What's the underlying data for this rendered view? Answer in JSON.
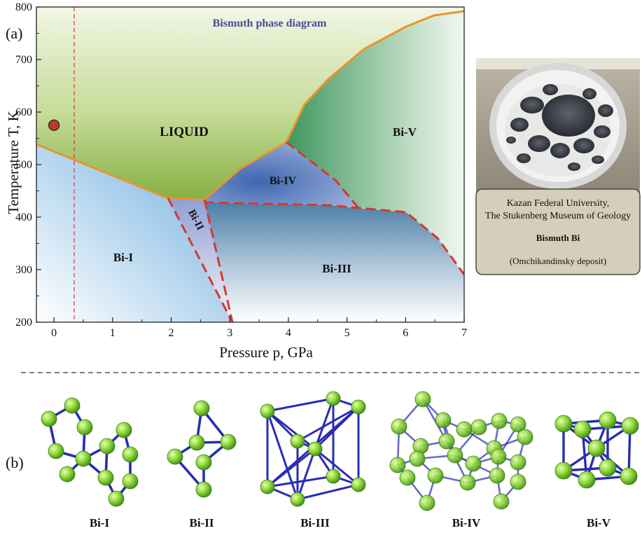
{
  "panel_a": {
    "label": "(a)",
    "title": "Bismuth phase diagram",
    "xlabel": "Pressure p, GPa",
    "ylabel": "Temperature T, K",
    "x_ticks": [
      "0",
      "1",
      "2",
      "3",
      "4",
      "5",
      "6",
      "7"
    ],
    "y_ticks": [
      "200",
      "300",
      "400",
      "500",
      "600",
      "700",
      "800"
    ],
    "x_range": [
      -0.3,
      7.0
    ],
    "y_range": [
      200,
      800
    ],
    "phase_labels": [
      "LIQUID",
      "Bi-V",
      "Bi-IV",
      "Bi-II",
      "Bi-I",
      "Bi-III"
    ],
    "marker_point": {
      "p": 0.0,
      "T": 575
    },
    "colors": {
      "liquid": "#8fb64a",
      "bi_v": "#4a9a6a",
      "bi_iv": "#4a72b8",
      "bi_ii": "#a8b4dc",
      "bi_i": "#8ec0e6",
      "bi_iii": "#5a86ac",
      "melting_line": "#e8952a",
      "transition_line": "#d43a2a",
      "title": "#4a4a9a"
    }
  },
  "sample_card": {
    "line1": "Kazan Federal University,",
    "line2": "The Stukenberg Museum of Geology",
    "name": "Bismuth Bi",
    "deposit": "(Omchikandinsky deposit)"
  },
  "panel_b": {
    "label": "(b)",
    "structures": [
      "Bi-I",
      "Bi-II",
      "Bi-III",
      "Bi-IV",
      "Bi-V"
    ]
  }
}
